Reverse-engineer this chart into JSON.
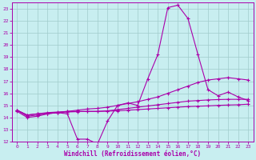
{
  "xlabel": "Windchill (Refroidissement éolien,°C)",
  "background_color": "#c8eef0",
  "grid_color": "#a0cccc",
  "line_color": "#aa00aa",
  "xlim": [
    -0.5,
    23.5
  ],
  "ylim": [
    12,
    23.5
  ],
  "xticks": [
    0,
    1,
    2,
    3,
    4,
    5,
    6,
    7,
    8,
    9,
    10,
    11,
    12,
    13,
    14,
    15,
    16,
    17,
    18,
    19,
    20,
    21,
    22,
    23
  ],
  "yticks": [
    12,
    13,
    14,
    15,
    16,
    17,
    18,
    19,
    20,
    21,
    22,
    23
  ],
  "series": [
    {
      "x": [
        0,
        1,
        2,
        3,
        4,
        5,
        6,
        7,
        8,
        9,
        10,
        11,
        12,
        13,
        14,
        15,
        16,
        17,
        18,
        19,
        20,
        21,
        22,
        23
      ],
      "y": [
        14.5,
        14.0,
        14.1,
        14.3,
        14.4,
        14.3,
        12.2,
        12.2,
        11.8,
        13.7,
        15.0,
        15.2,
        15.0,
        17.2,
        19.2,
        23.1,
        23.3,
        22.2,
        19.2,
        16.3,
        15.8,
        16.1,
        15.7,
        15.4
      ]
    },
    {
      "x": [
        0,
        1,
        2,
        3,
        4,
        5,
        6,
        7,
        8,
        9,
        10,
        11,
        12,
        13,
        14,
        15,
        16,
        17,
        18,
        19,
        20,
        21,
        22,
        23
      ],
      "y": [
        14.6,
        14.1,
        14.2,
        14.3,
        14.4,
        14.5,
        14.6,
        14.7,
        14.75,
        14.85,
        15.0,
        15.15,
        15.3,
        15.5,
        15.7,
        16.0,
        16.3,
        16.6,
        16.9,
        17.1,
        17.2,
        17.3,
        17.2,
        17.1
      ]
    },
    {
      "x": [
        0,
        1,
        2,
        3,
        4,
        5,
        6,
        7,
        8,
        9,
        10,
        11,
        12,
        13,
        14,
        15,
        16,
        17,
        18,
        19,
        20,
        21,
        22,
        23
      ],
      "y": [
        14.6,
        14.2,
        14.3,
        14.4,
        14.45,
        14.5,
        14.5,
        14.5,
        14.5,
        14.55,
        14.65,
        14.75,
        14.85,
        14.95,
        15.05,
        15.15,
        15.25,
        15.35,
        15.4,
        15.45,
        15.48,
        15.5,
        15.5,
        15.5
      ]
    },
    {
      "x": [
        0,
        1,
        2,
        3,
        4,
        5,
        6,
        7,
        8,
        9,
        10,
        11,
        12,
        13,
        14,
        15,
        16,
        17,
        18,
        19,
        20,
        21,
        22,
        23
      ],
      "y": [
        14.6,
        14.2,
        14.3,
        14.35,
        14.4,
        14.45,
        14.48,
        14.5,
        14.5,
        14.52,
        14.55,
        14.6,
        14.65,
        14.7,
        14.75,
        14.8,
        14.85,
        14.9,
        14.93,
        14.96,
        15.0,
        15.03,
        15.05,
        15.1
      ]
    }
  ]
}
